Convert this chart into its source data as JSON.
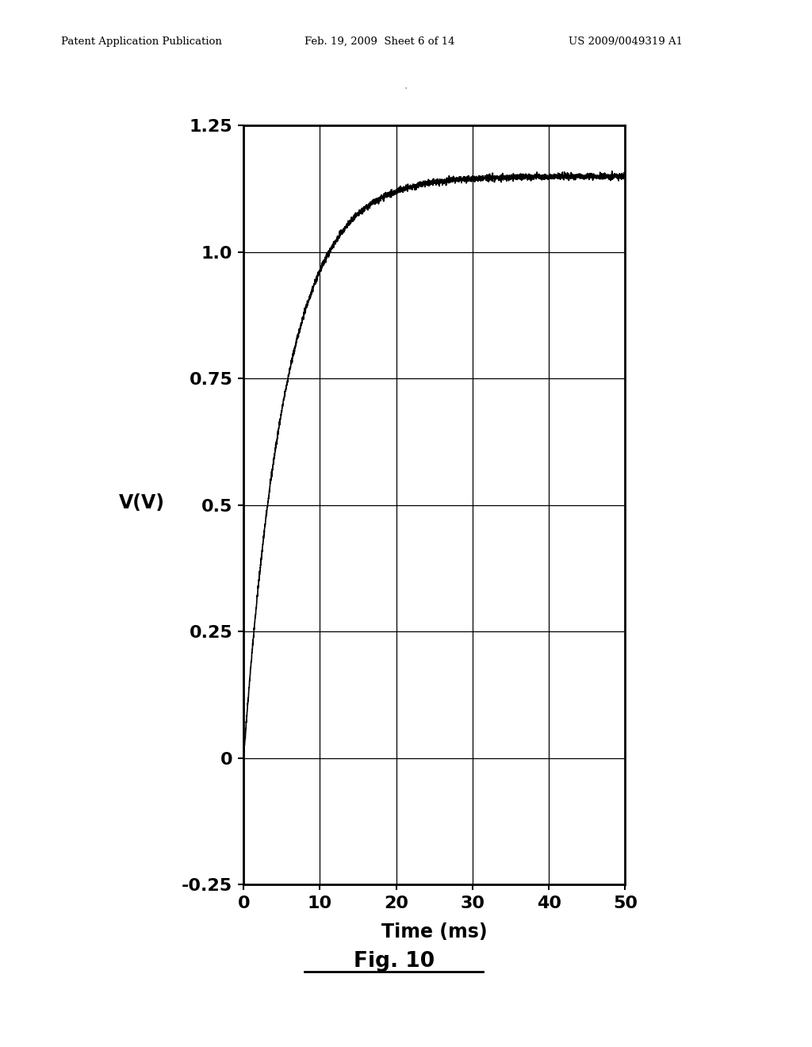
{
  "header_left": "Patent Application Publication",
  "header_mid": "Feb. 19, 2009  Sheet 6 of 14",
  "header_right": "US 2009/0049319 A1",
  "xlabel": "Time (ms)",
  "ylabel": "V(V)",
  "xlim": [
    0,
    50
  ],
  "ylim": [
    -0.25,
    1.25
  ],
  "xticks": [
    0,
    10,
    20,
    30,
    40,
    50
  ],
  "yticks": [
    -0.25,
    0,
    0.25,
    0.5,
    0.75,
    1.0,
    1.25
  ],
  "ytick_labels": [
    "-0.25",
    "0",
    "0.25",
    "0.5",
    "0.75",
    "1.0",
    "1.25"
  ],
  "fig_caption": "Fig. 10",
  "line_color": "#000000",
  "background_color": "#ffffff",
  "curve_tau": 5.5,
  "curve_vmax": 1.15,
  "curve_noise_amplitude": 0.003
}
